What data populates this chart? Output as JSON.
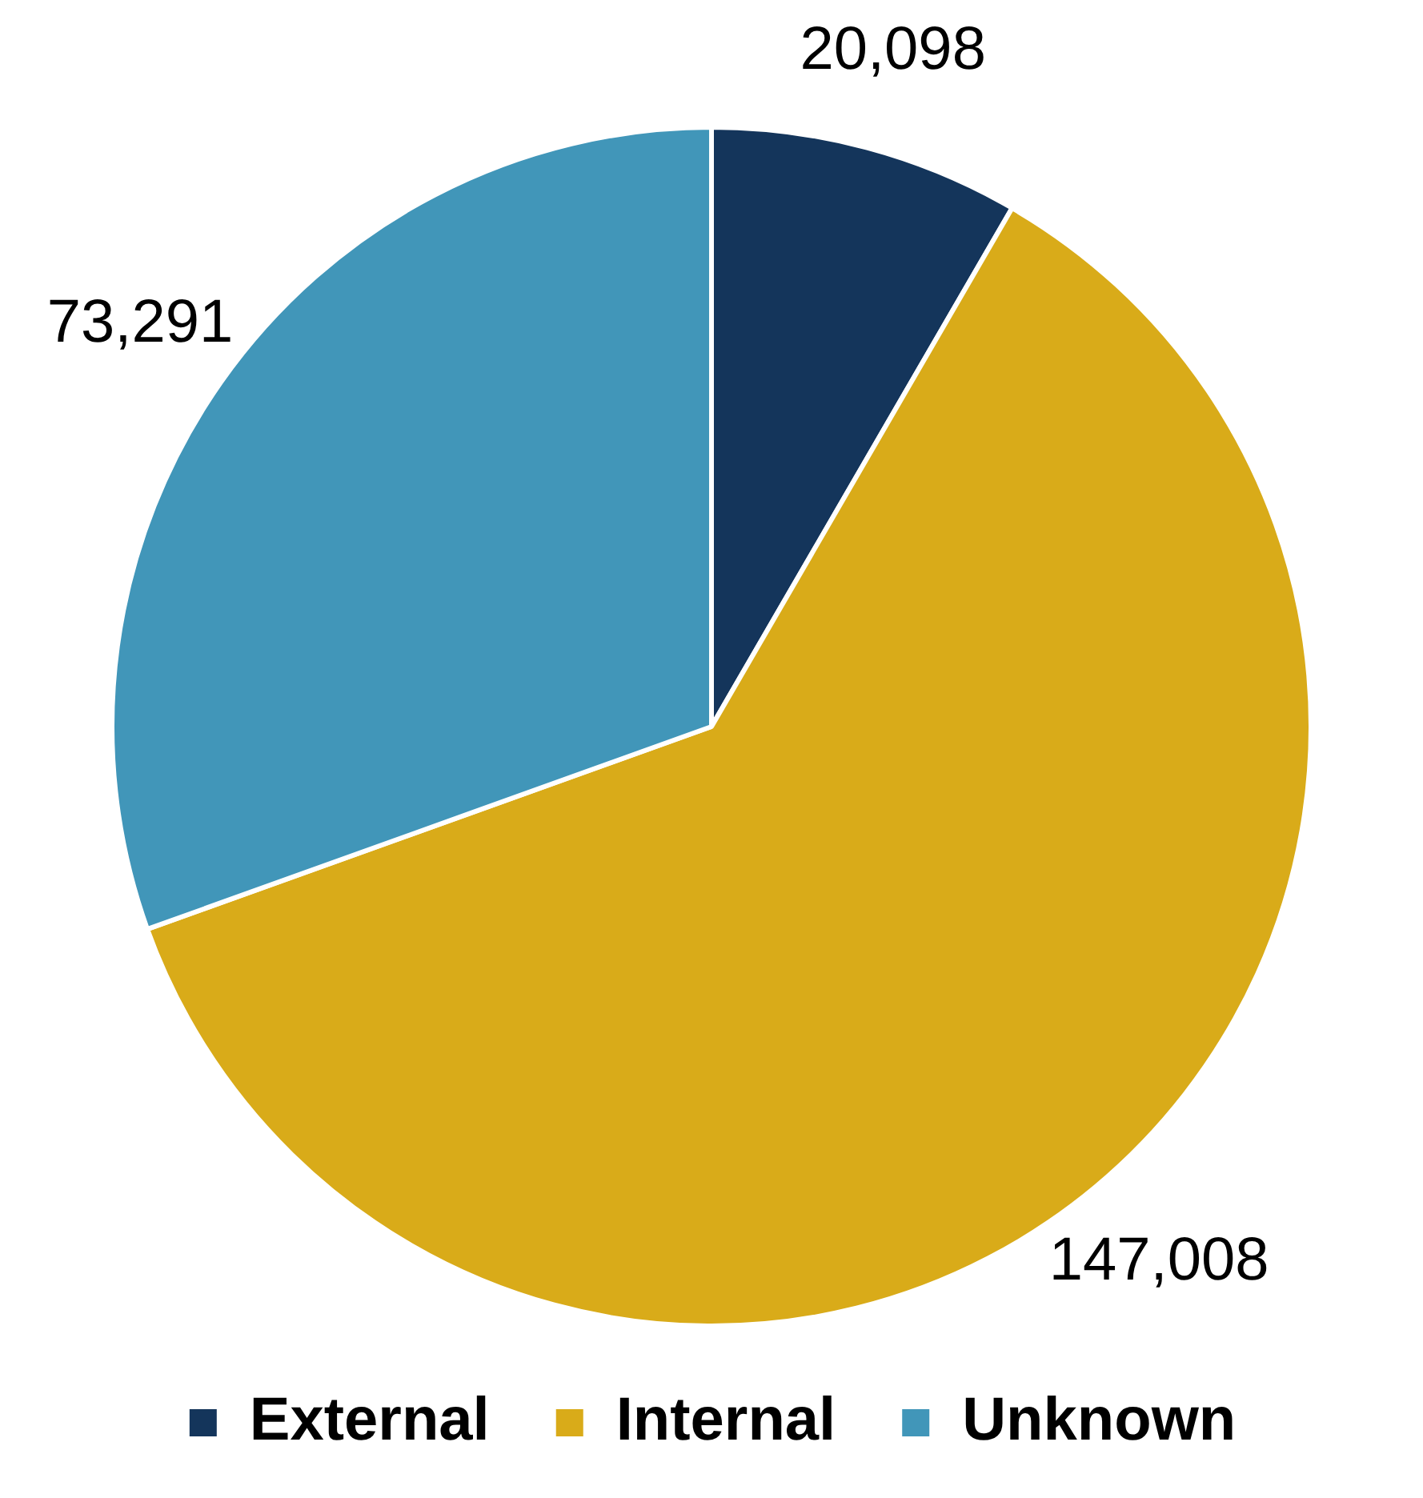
{
  "chart_data": {
    "type": "pie",
    "categories": [
      "External",
      "Internal",
      "Unknown"
    ],
    "values": [
      20098,
      147008,
      73291
    ],
    "value_labels": [
      "20,098",
      "147,008",
      "73,291"
    ],
    "colors": [
      "#14355b",
      "#d9ab19",
      "#4196b9"
    ],
    "legend": "bottom"
  }
}
